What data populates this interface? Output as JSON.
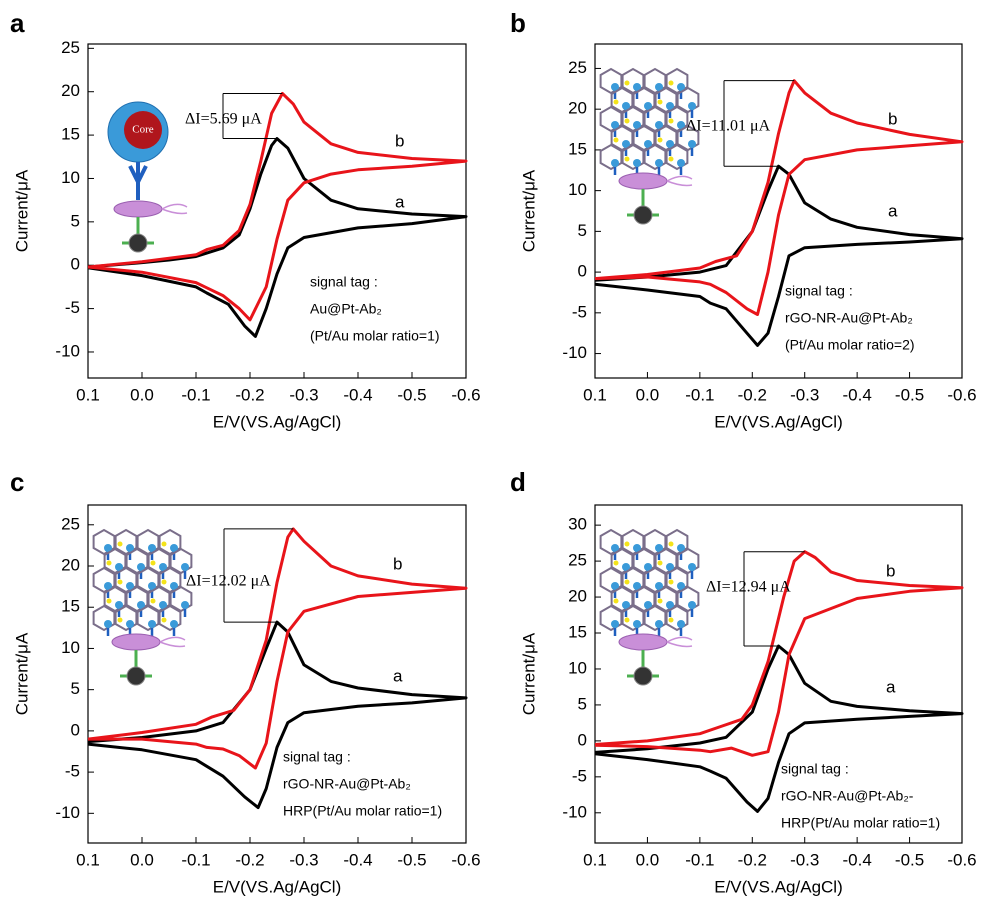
{
  "chart_data": [
    {
      "type": "line",
      "panel": "a",
      "xlabel": "E/V(VS.Ag/AgCl)",
      "ylabel": "Current/μA",
      "xlim": [
        0.1,
        -0.6
      ],
      "xticks": [
        0.1,
        {
          "value": 0,
          "label": "0.0"
        },
        -0.1,
        -0.2,
        -0.3,
        -0.4,
        -0.5,
        -0.6
      ],
      "ylim": [
        -13,
        25.5
      ],
      "yticks": [
        -10,
        -5,
        0,
        5,
        10,
        15,
        20,
        25
      ],
      "annotation": "ΔI=5.69 μA",
      "signal_tag": [
        "signal tag :",
        "Au@Pt-Ab₂",
        "(Pt/Au molar ratio=1)"
      ],
      "inset_label": "Core",
      "series": [
        {
          "name": "a",
          "color": "#000000",
          "x": [
            0.1,
            0.0,
            -0.05,
            -0.1,
            -0.12,
            -0.15,
            -0.18,
            -0.2,
            -0.22,
            -0.24,
            -0.25,
            -0.27,
            -0.3,
            -0.35,
            -0.4,
            -0.5,
            -0.6,
            -0.5,
            -0.4,
            -0.3,
            -0.27,
            -0.25,
            -0.23,
            -0.21,
            -0.19,
            -0.16,
            -0.12,
            -0.1,
            0.0,
            0.1
          ],
          "values": [
            -0.2,
            0.3,
            0.6,
            1.0,
            1.4,
            2.0,
            3.5,
            6.5,
            10.5,
            13.8,
            14.6,
            13.5,
            10,
            7.5,
            6.5,
            5.9,
            5.6,
            4.8,
            4.3,
            3.2,
            2.0,
            -1.0,
            -5,
            -8.2,
            -7,
            -4.5,
            -3.2,
            -2.5,
            -1.2,
            -0.3
          ]
        },
        {
          "name": "b",
          "color": "#e8141a",
          "x": [
            0.1,
            0.0,
            -0.1,
            -0.12,
            -0.15,
            -0.18,
            -0.2,
            -0.22,
            -0.24,
            -0.26,
            -0.28,
            -0.3,
            -0.35,
            -0.4,
            -0.5,
            -0.6,
            -0.5,
            -0.4,
            -0.35,
            -0.3,
            -0.27,
            -0.25,
            -0.23,
            -0.2,
            -0.18,
            -0.15,
            -0.12,
            -0.1,
            0.0,
            0.1
          ],
          "values": [
            -0.2,
            0.4,
            1.2,
            1.8,
            2.3,
            4,
            7,
            12,
            17.5,
            19.8,
            18.6,
            16.5,
            14,
            13,
            12.3,
            12.0,
            11.4,
            11,
            10.5,
            9.5,
            7.5,
            3,
            -2.5,
            -6.3,
            -5,
            -3.5,
            -2.6,
            -2,
            -0.8,
            -0.2
          ]
        }
      ]
    },
    {
      "type": "line",
      "panel": "b",
      "xlabel": "E/V(VS.Ag/AgCl)",
      "ylabel": "Current/μA",
      "xlim": [
        0.1,
        -0.6
      ],
      "xticks": [
        0.1,
        {
          "value": 0,
          "label": "0.0"
        },
        -0.1,
        -0.2,
        -0.3,
        -0.4,
        -0.5,
        -0.6
      ],
      "ylim": [
        -13,
        28
      ],
      "yticks": [
        -10,
        -5,
        0,
        5,
        10,
        15,
        20,
        25
      ],
      "annotation": "ΔI=11.01 μA",
      "signal_tag": [
        "signal tag :",
        "rGO-NR-Au@Pt-Ab₂",
        "(Pt/Au molar ratio=2)"
      ],
      "series": [
        {
          "name": "a",
          "color": "#000000",
          "x": [
            0.1,
            0.0,
            -0.1,
            -0.15,
            -0.2,
            -0.23,
            -0.25,
            -0.27,
            -0.3,
            -0.35,
            -0.4,
            -0.5,
            -0.6,
            -0.5,
            -0.4,
            -0.3,
            -0.27,
            -0.25,
            -0.23,
            -0.21,
            -0.19,
            -0.15,
            -0.12,
            -0.1,
            0.0,
            0.1
          ],
          "values": [
            -1.0,
            -0.6,
            0.0,
            0.8,
            5,
            10,
            13,
            12,
            8.5,
            6.5,
            5.5,
            4.6,
            4.1,
            3.7,
            3.4,
            3.0,
            2,
            -3,
            -7.5,
            -9,
            -7.5,
            -4.5,
            -3.8,
            -3,
            -2.2,
            -1.5
          ]
        },
        {
          "name": "b",
          "color": "#e8141a",
          "x": [
            0.1,
            0.0,
            -0.1,
            -0.13,
            -0.17,
            -0.2,
            -0.23,
            -0.25,
            -0.27,
            -0.28,
            -0.3,
            -0.35,
            -0.4,
            -0.5,
            -0.6,
            -0.5,
            -0.4,
            -0.3,
            -0.27,
            -0.25,
            -0.23,
            -0.21,
            -0.19,
            -0.15,
            -0.12,
            -0.1,
            0.0,
            0.1
          ],
          "values": [
            -0.8,
            -0.3,
            0.5,
            1.3,
            2,
            5,
            11,
            17,
            22,
            23.5,
            22,
            19.5,
            18.3,
            16.9,
            16.0,
            15.5,
            15,
            13.8,
            12,
            7,
            0,
            -5.2,
            -4.5,
            -2.5,
            -1.5,
            -1.2,
            -0.6,
            -0.8
          ]
        }
      ]
    },
    {
      "type": "line",
      "panel": "c",
      "xlabel": "E/V(VS.Ag/AgCl)",
      "ylabel": "Current/μA",
      "xlim": [
        0.1,
        -0.6
      ],
      "xticks": [
        0.1,
        {
          "value": 0,
          "label": "0.0"
        },
        -0.1,
        -0.2,
        -0.3,
        -0.4,
        -0.5,
        -0.6
      ],
      "ylim": [
        -13.6,
        27.4
      ],
      "yticks": [
        -10,
        -5,
        0,
        5,
        10,
        15,
        20,
        25
      ],
      "annotation": "ΔI=12.02 μA",
      "signal_tag": [
        "signal tag :",
        "rGO-NR-Au@Pt-Ab₂",
        "HRP(Pt/Au molar ratio=1)"
      ],
      "series": [
        {
          "name": "a",
          "color": "#000000",
          "x": [
            0.1,
            0.0,
            -0.1,
            -0.15,
            -0.2,
            -0.23,
            -0.25,
            -0.27,
            -0.3,
            -0.35,
            -0.4,
            -0.5,
            -0.6,
            -0.5,
            -0.4,
            -0.3,
            -0.27,
            -0.25,
            -0.23,
            -0.215,
            -0.19,
            -0.15,
            -0.12,
            -0.1,
            0.0,
            0.1
          ],
          "values": [
            -1.3,
            -0.8,
            0.0,
            1,
            5,
            10,
            13.2,
            12,
            8,
            6,
            5.2,
            4.4,
            4.0,
            3.4,
            3.0,
            2.2,
            1,
            -2,
            -7,
            -9.3,
            -8,
            -5.5,
            -4.3,
            -3.5,
            -2.3,
            -1.6
          ]
        },
        {
          "name": "b",
          "color": "#e8141a",
          "x": [
            0.1,
            0.0,
            -0.1,
            -0.13,
            -0.17,
            -0.2,
            -0.23,
            -0.25,
            -0.27,
            -0.28,
            -0.3,
            -0.35,
            -0.4,
            -0.5,
            -0.6,
            -0.5,
            -0.4,
            -0.3,
            -0.27,
            -0.25,
            -0.23,
            -0.21,
            -0.18,
            -0.15,
            -0.12,
            -0.1,
            0.0,
            0.1
          ],
          "values": [
            -1.0,
            -0.2,
            0.8,
            1.7,
            2.5,
            5,
            11,
            18,
            23.5,
            24.5,
            23,
            20,
            18.8,
            17.8,
            17.3,
            16.8,
            16.3,
            14.5,
            12,
            6,
            -1.5,
            -4.5,
            -3,
            -2.2,
            -2,
            -1.6,
            -1.0,
            -1.0
          ]
        }
      ]
    },
    {
      "type": "line",
      "panel": "d",
      "xlabel": "E/V(VS.Ag/AgCl)",
      "ylabel": "Current/μA",
      "xlim": [
        0.1,
        -0.6
      ],
      "xticks": [
        0.1,
        {
          "value": 0,
          "label": "0.0"
        },
        -0.1,
        -0.2,
        -0.3,
        -0.4,
        -0.5,
        -0.6
      ],
      "ylim": [
        -14.2,
        32.8
      ],
      "yticks": [
        -10,
        -5,
        0,
        5,
        10,
        15,
        20,
        25,
        30
      ],
      "annotation": "ΔI=12.94 μA",
      "signal_tag": [
        "signal tag :",
        "rGO-NR-Au@Pt-Ab₂-",
        "HRP(Pt/Au molar ratio=1)"
      ],
      "series": [
        {
          "name": "a",
          "color": "#000000",
          "x": [
            0.1,
            0.0,
            -0.1,
            -0.15,
            -0.2,
            -0.23,
            -0.25,
            -0.27,
            -0.3,
            -0.35,
            -0.4,
            -0.5,
            -0.6,
            -0.5,
            -0.4,
            -0.3,
            -0.27,
            -0.25,
            -0.23,
            -0.21,
            -0.19,
            -0.15,
            -0.12,
            -0.1,
            0.0,
            0.1
          ],
          "values": [
            -1.6,
            -1.1,
            -0.3,
            0.5,
            4,
            10,
            13.2,
            12,
            8,
            5.5,
            4.8,
            4.2,
            3.8,
            3.4,
            3.0,
            2.5,
            1,
            -3,
            -8,
            -9.8,
            -8.5,
            -5.2,
            -4.2,
            -3.6,
            -2.6,
            -1.8
          ]
        },
        {
          "name": "b",
          "color": "#e8141a",
          "x": [
            0.1,
            0.0,
            -0.1,
            -0.14,
            -0.18,
            -0.2,
            -0.23,
            -0.26,
            -0.28,
            -0.3,
            -0.32,
            -0.35,
            -0.4,
            -0.5,
            -0.6,
            -0.5,
            -0.4,
            -0.3,
            -0.27,
            -0.25,
            -0.23,
            -0.2,
            -0.16,
            -0.12,
            -0.1,
            0.0,
            0.1
          ],
          "values": [
            -0.5,
            0.0,
            1.0,
            2.0,
            3,
            5,
            11,
            20,
            25,
            26.3,
            25.5,
            23.5,
            22.3,
            21.6,
            21.3,
            20.8,
            19.8,
            17,
            12,
            4,
            -1.5,
            -2,
            -1,
            -1.5,
            -1.3,
            -0.8,
            -0.6
          ]
        }
      ]
    }
  ]
}
